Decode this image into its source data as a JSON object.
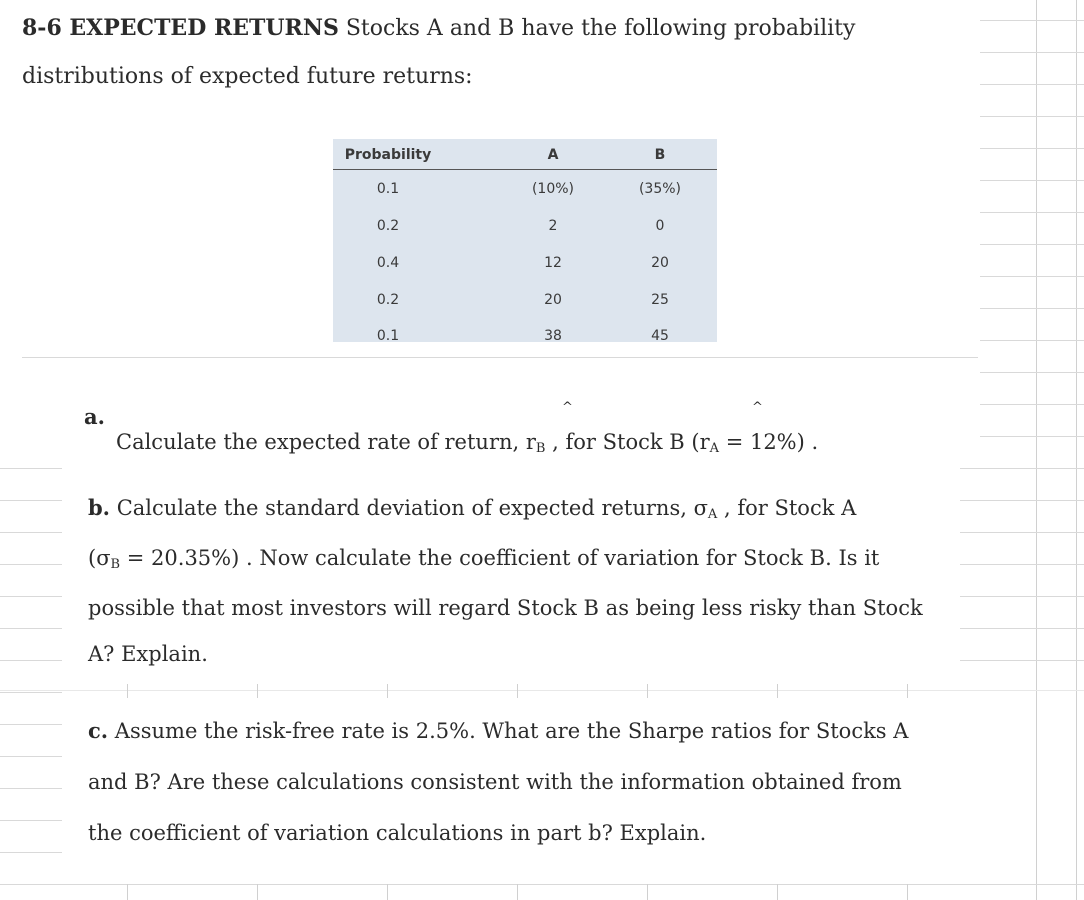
{
  "header": {
    "problem_number": "8-6 EXPECTED RETURNS",
    "intro_line1": "Stocks A and B have the following probability",
    "intro_line2": "distributions of expected future returns:"
  },
  "table": {
    "headers": [
      "Probability",
      "A",
      "B"
    ],
    "rows": [
      [
        "0.1",
        "(10%)",
        "(35%)"
      ],
      [
        "0.2",
        "2",
        "0"
      ],
      [
        "0.4",
        "12",
        "20"
      ],
      [
        "0.2",
        "20",
        "25"
      ],
      [
        "0.1",
        "38",
        "45"
      ]
    ]
  },
  "part_a": {
    "label": "a.",
    "text1": "Calculate the expected rate of return, r",
    "sub_b": "B",
    "text2": ", for Stock B (r",
    "sub_a": "A",
    "text3": "= 12%) .",
    "hat": "^"
  },
  "part_b": {
    "label": "b.",
    "line1_text": "Calculate the standard deviation of expected returns, σ",
    "line1_sub": "A",
    "line1_end": ", for Stock A",
    "line2_start": "(σ",
    "line2_sub": "B",
    "line2_end": "= 20.35%) . Now calculate the coefficient of variation for Stock B. Is it",
    "line3": "possible that most investors will regard Stock B as being less risky than Stock",
    "line4": "A? Explain."
  },
  "part_c": {
    "label": "c.",
    "line1": "Assume the risk-free rate is 2.5%. What are the Sharpe ratios for Stocks A",
    "line2": "and B? Are these calculations consistent with the information obtained from",
    "line3": "the coefficient of variation calculations in part b? Explain."
  }
}
